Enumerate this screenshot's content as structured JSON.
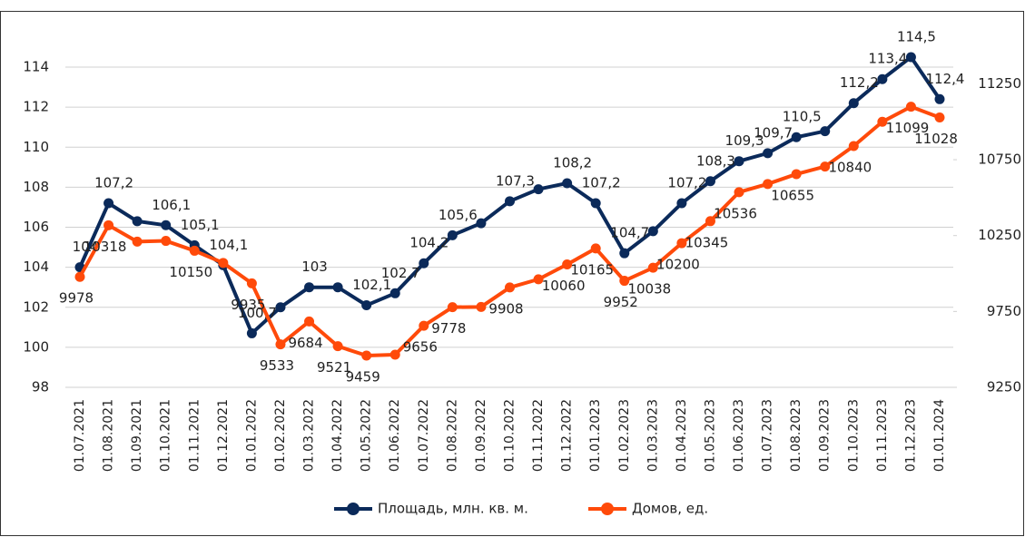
{
  "chart_data": {
    "type": "line",
    "categories": [
      "01.07.2021",
      "01.08.2021",
      "01.09.2021",
      "01.10.2021",
      "01.11.2021",
      "01.12.2021",
      "01.01.2022",
      "01.02.2022",
      "01.03.2022",
      "01.04.2022",
      "01.05.2022",
      "01.06.2022",
      "01.07.2022",
      "01.08.2022",
      "01.09.2022",
      "01.10.2022",
      "01.11.2022",
      "01.12.2022",
      "01.01.2023",
      "01.02.2023",
      "01.03.2023",
      "01.04.2023",
      "01.05.2023",
      "01.06.2023",
      "01.07.2023",
      "01.08.2023",
      "01.09.2023",
      "01.10.2023",
      "01.11.2023",
      "01.12.2023",
      "01.01.2024"
    ],
    "series": [
      {
        "name": "Площадь, млн. кв. м.",
        "color": "#0b2a5a",
        "values": [
          104,
          107.2,
          106.3,
          106.1,
          105.1,
          104.1,
          100.7,
          102,
          103,
          103,
          102.1,
          102.7,
          104.2,
          105.6,
          106.2,
          107.3,
          107.9,
          108.2,
          107.2,
          104.7,
          105.8,
          107.2,
          108.3,
          109.3,
          109.7,
          110.5,
          110.8,
          112.2,
          113.4,
          114.5,
          112.4
        ],
        "value_labels": [
          "104",
          "107,2",
          null,
          "106,1",
          "105,1",
          "104,1",
          "100,7",
          null,
          "103",
          null,
          "102,1",
          "102,7",
          "104,2",
          "105,6",
          null,
          "107,3",
          null,
          "108,2",
          "107,2",
          "104,7",
          null,
          "107,2",
          "108,3",
          "109,3",
          "109,7",
          "110,5",
          null,
          "112,2",
          "113,4",
          "114,5",
          "112,4"
        ]
      },
      {
        "name": "Домов, ед.",
        "color": "#ff4a0a",
        "axis": "y2",
        "values": [
          9978,
          10318,
          10210,
          10215,
          10150,
          10070,
          9935,
          9533,
          9684,
          9521,
          9459,
          9465,
          9656,
          9778,
          9780,
          9908,
          9962,
          10060,
          10165,
          9952,
          10038,
          10200,
          10345,
          10536,
          10590,
          10655,
          10705,
          10840,
          11000,
          11099,
          11028
        ],
        "value_labels": [
          "9978",
          "10318",
          null,
          null,
          "10150",
          null,
          "9935",
          "9533",
          "9684",
          "9521",
          "9459",
          null,
          "9656",
          "9778",
          null,
          "9908",
          null,
          "10060",
          "10165",
          "9952",
          "10038",
          "10200",
          "10345",
          "10536",
          null,
          "10655",
          null,
          "10840",
          null,
          "11099",
          "11028"
        ]
      }
    ],
    "ylim": [
      98,
      114
    ],
    "yticks": [
      98,
      100,
      102,
      104,
      106,
      108,
      110,
      112,
      114
    ],
    "y2lim": [
      9250,
      11360
    ],
    "y2ticks": [
      9250,
      9750,
      10250,
      10750,
      11250
    ],
    "grid": true,
    "legend": "bottom"
  }
}
